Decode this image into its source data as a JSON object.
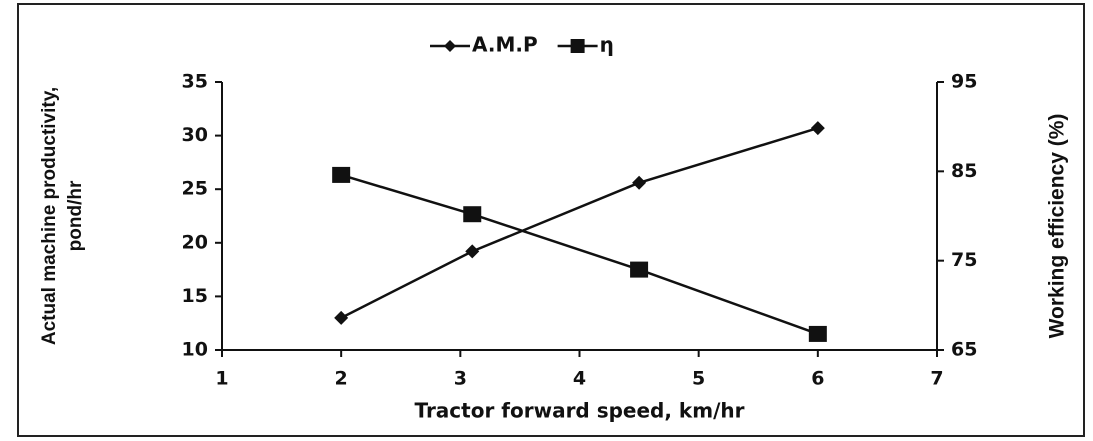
{
  "chart_data": {
    "type": "line",
    "x": [
      2,
      3.1,
      4.5,
      6
    ],
    "series": [
      {
        "name": "A.M.P",
        "color": "#111111",
        "marker": "diamond",
        "values": [
          13,
          19.2,
          25.6,
          30.7
        ]
      },
      {
        "name": "η",
        "color": "#111111",
        "marker": "square",
        "axis": "y2",
        "values": [
          84.6,
          80.2,
          74.0,
          66.8
        ]
      }
    ],
    "xlabel": "Tractor forward speed, km/hr",
    "ylabel": [
      "Actual machine productivity,",
      "pond/hr"
    ],
    "y2label": "Working efficiency (%)",
    "xlim": [
      1,
      7
    ],
    "xticks": [
      1,
      2,
      3,
      4,
      5,
      6,
      7
    ],
    "ylim": [
      10,
      35
    ],
    "yticks": [
      10,
      15,
      20,
      25,
      30,
      35
    ],
    "y2lim": [
      65,
      95
    ],
    "y2ticks": [
      65,
      75,
      85,
      95
    ],
    "legend": "top",
    "grid": false
  }
}
